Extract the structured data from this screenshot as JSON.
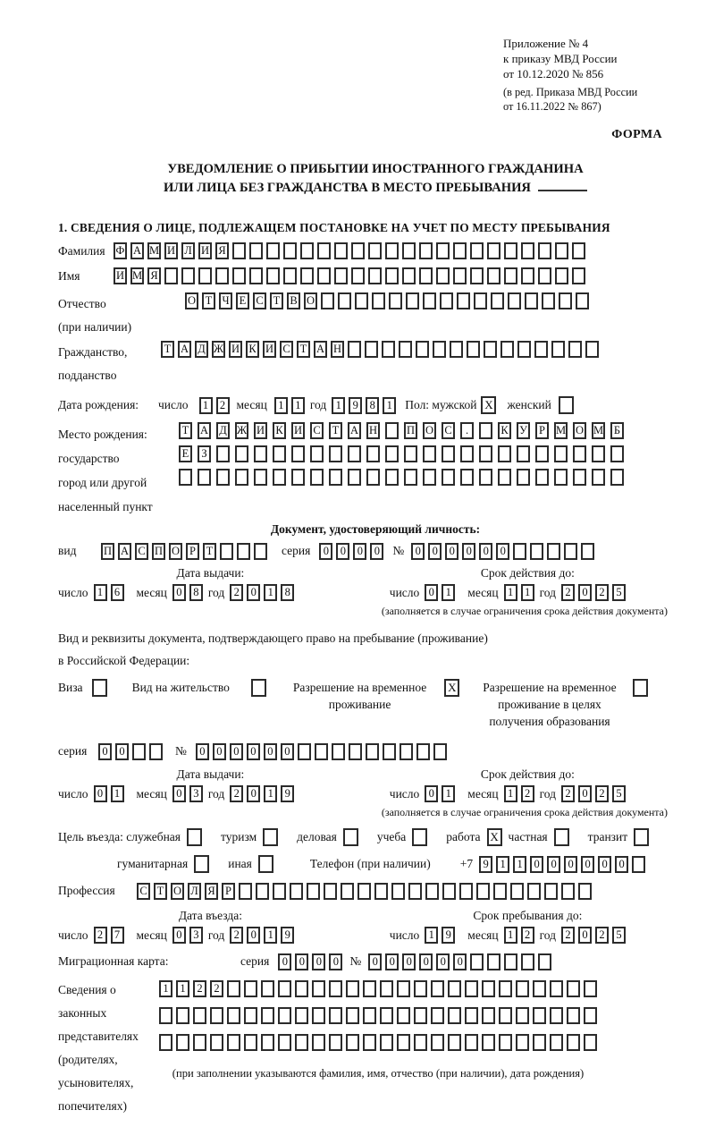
{
  "header": {
    "annex_lines": [
      "Приложение № 4",
      "к приказу МВД России",
      "от 10.12.2020 № 856"
    ],
    "annex_note_lines": [
      "(в ред. Приказа МВД России",
      "от 16.11.2022 № 867)"
    ],
    "form_label": "ФОРМА"
  },
  "title": {
    "line1": "УВЕДОМЛЕНИЕ О ПРИБЫТИИ ИНОСТРАННОГО ГРАЖДАНИНА",
    "line2": "ИЛИ ЛИЦА БЕЗ ГРАЖДАНСТВА В МЕСТО ПРЕБЫВАНИЯ"
  },
  "section1": {
    "heading": "1. СВЕДЕНИЯ О ЛИЦЕ, ПОДЛЕЖАЩЕМ ПОСТАНОВКЕ НА УЧЕТ ПО МЕСТУ ПРЕБЫВАНИЯ"
  },
  "person": {
    "surname": {
      "label": "Фамилия",
      "cells": {
        "value": "ФАМИЛИЯ",
        "len": 28
      }
    },
    "firstname": {
      "label": "Имя",
      "cells": {
        "value": "ИМЯ",
        "len": 28
      }
    },
    "patronymic": {
      "label1": "Отчество",
      "label2": "(при наличии)",
      "cells": {
        "value": "ОТЧЕСТВО",
        "len": 24
      }
    },
    "citizenship": {
      "label1": "Гражданство,",
      "label2": "подданство",
      "cells": {
        "value": "ТАДЖИКИСТАН",
        "len": 26
      }
    },
    "birth_date": {
      "label": "Дата рождения:",
      "day_label": "число",
      "day": {
        "value": "12",
        "len": 2
      },
      "month_label": "месяц",
      "month": {
        "value": "11",
        "len": 2
      },
      "year_label": "год",
      "year": {
        "value": "1981",
        "len": 4
      }
    },
    "sex": {
      "male_label": "Пол: мужской",
      "male": "X",
      "female_label": "женский",
      "female": ""
    },
    "birth_place": {
      "label1": "Место рождения:",
      "label2": "государство",
      "label3": "город или другой",
      "label4": "населенный пункт",
      "row1": {
        "value": "ТАДЖИКИСТАН ПОС. КУРМОМБ",
        "len": 24
      },
      "row2": {
        "value": "ЕЗ",
        "len": 24
      },
      "row3": {
        "value": "",
        "len": 24
      }
    }
  },
  "identity_doc": {
    "heading": "Документ, удостоверяющий личность:",
    "kind_label": "вид",
    "kind": {
      "value": "ПАСПОРТ",
      "len": 10
    },
    "series_label": "серия",
    "series": {
      "value": "0000",
      "len": 4
    },
    "number_label": "№",
    "number": {
      "value": "000000",
      "len": 11
    },
    "issue": {
      "heading": "Дата выдачи:",
      "day_label": "число",
      "day": {
        "value": "16",
        "len": 2
      },
      "month_label": "месяц",
      "month": {
        "value": "08",
        "len": 2
      },
      "year_label": "год",
      "year": {
        "value": "2018",
        "len": 4
      }
    },
    "expiry": {
      "heading": "Срок действия до:",
      "day_label": "число",
      "day": {
        "value": "01",
        "len": 2
      },
      "month_label": "месяц",
      "month": {
        "value": "11",
        "len": 2
      },
      "year_label": "год",
      "year": {
        "value": "2025",
        "len": 4
      }
    },
    "note": "(заполняется в случае ограничения срока действия документа)"
  },
  "residence_doc": {
    "intro1": "Вид и реквизиты документа, подтверждающего право на пребывание (проживание)",
    "intro2": "в Российской Федерации:",
    "visa_label": "Виза",
    "visa": "",
    "permit_label": "Вид на жительство",
    "permit": "",
    "temp_label1": "Разрешение на временное",
    "temp_label2": "проживание",
    "temp": "X",
    "edu_label1": "Разрешение на временное",
    "edu_label2": "проживание в целях",
    "edu_label3": "получения образования",
    "edu": "",
    "series_label": "серия",
    "series": {
      "value": "00",
      "len": 4
    },
    "number_label": "№",
    "number": {
      "value": "000000",
      "len": 15
    },
    "issue": {
      "heading": "Дата выдачи:",
      "day_label": "число",
      "day": {
        "value": "01",
        "len": 2
      },
      "month_label": "месяц",
      "month": {
        "value": "03",
        "len": 2
      },
      "year_label": "год",
      "year": {
        "value": "2019",
        "len": 4
      }
    },
    "expiry": {
      "heading": "Срок действия до:",
      "day_label": "число",
      "day": {
        "value": "01",
        "len": 2
      },
      "month_label": "месяц",
      "month": {
        "value": "12",
        "len": 2
      },
      "year_label": "год",
      "year": {
        "value": "2025",
        "len": 4
      }
    },
    "note": "(заполняется в случае ограничения срока действия документа)"
  },
  "visit": {
    "purpose_label": "Цель въезда: служебная",
    "official": "",
    "tourism_label": "туризм",
    "tourism": "",
    "business_label": "деловая",
    "business": "",
    "study_label": "учеба",
    "study": "",
    "work_label": "работа",
    "work": "X",
    "private_label": "частная",
    "private": "",
    "transit_label": "транзит",
    "transit": "",
    "humanitarian_label": "гуманитарная",
    "humanitarian": "",
    "other_label": "иная",
    "other": "",
    "phone_label": "Телефон (при наличии)",
    "phone_prefix": "+7",
    "phone": {
      "value": "911000000",
      "len": 10
    },
    "profession_label": "Профессия",
    "profession": {
      "value": "СТОЛЯР",
      "len": 27
    },
    "entry": {
      "heading": "Дата въезда:",
      "day_label": "число",
      "day": {
        "value": "27",
        "len": 2
      },
      "month_label": "месяц",
      "month": {
        "value": "03",
        "len": 2
      },
      "year_label": "год",
      "year": {
        "value": "2019",
        "len": 4
      }
    },
    "stay": {
      "heading": "Срок пребывания до:",
      "day_label": "число",
      "day": {
        "value": "19",
        "len": 2
      },
      "month_label": "месяц",
      "month": {
        "value": "12",
        "len": 2
      },
      "year_label": "год",
      "year": {
        "value": "2025",
        "len": 4
      }
    }
  },
  "migration_card": {
    "label": "Миграционная карта:",
    "series_label": "серия",
    "series": {
      "value": "0000",
      "len": 4
    },
    "number_label": "№",
    "number": {
      "value": "000000",
      "len": 11
    }
  },
  "representatives": {
    "label_lines": [
      "Сведения о",
      "законных",
      "представителях",
      "(родителях,",
      "усыновителях,",
      "попечителях)"
    ],
    "row1": {
      "value": "1122",
      "len": 26
    },
    "row2": {
      "value": "",
      "len": 26
    },
    "row3": {
      "value": "",
      "len": 26
    },
    "note": "(при заполнении указываются фамилия, имя, отчество (при наличии), дата рождения)"
  }
}
